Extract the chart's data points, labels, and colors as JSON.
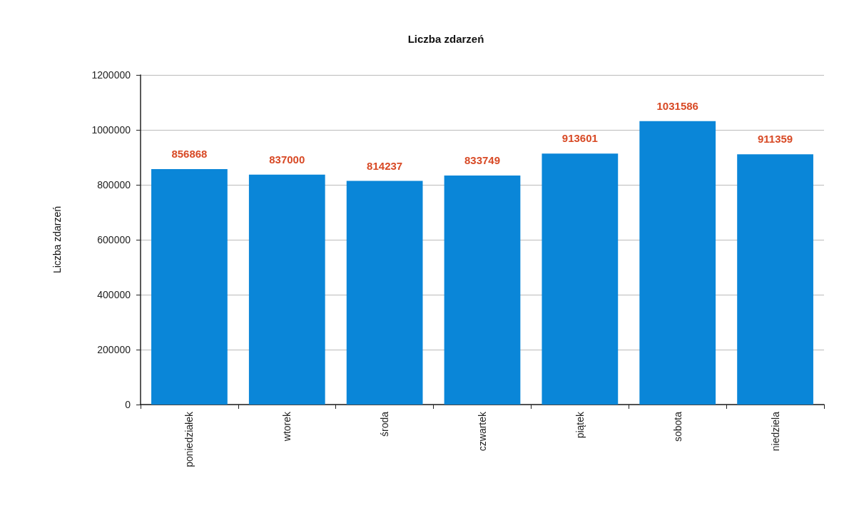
{
  "chart_data": {
    "type": "bar",
    "title": "Liczba zdarzeń",
    "ylabel": "Liczba zdarzeń",
    "categories": [
      "poniedziałek",
      "wtorek",
      "środa",
      "czwartek",
      "piątek",
      "sobota",
      "niedziela"
    ],
    "values": [
      856868,
      837000,
      814237,
      833749,
      913601,
      1031586,
      911359
    ],
    "color": "#0a86d8",
    "ylim": [
      0,
      1200000
    ],
    "yticks": [
      0,
      200000,
      400000,
      600000,
      800000,
      1000000,
      1200000
    ],
    "grid": "y",
    "data_labels": true
  }
}
